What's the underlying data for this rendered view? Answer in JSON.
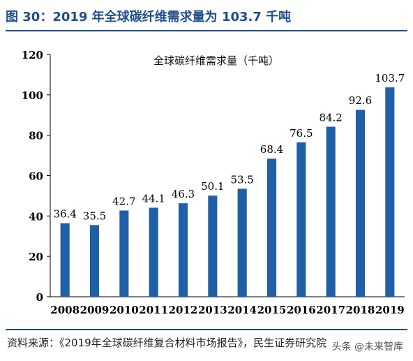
{
  "figure_title": "图 30：2019 年全球碳纤维需求量为 103.7 千吨",
  "source": "资料来源：《2019年全球碳纤维复合材料市场报告》，民生证券研究院",
  "watermark": "头条 @未来智库",
  "colors": {
    "bar": "#1f5fa8",
    "title": "#1f4e8c",
    "axis": "#000000"
  },
  "chart_data": {
    "type": "bar",
    "title": "全球碳纤维需求量（千吨）",
    "categories": [
      "2008",
      "2009",
      "2010",
      "2011",
      "2012",
      "2013",
      "2014",
      "2015",
      "2016",
      "2017",
      "2018",
      "2019"
    ],
    "values": [
      36.4,
      35.5,
      42.7,
      44.1,
      46.3,
      50.1,
      53.5,
      68.4,
      76.5,
      84.2,
      92.6,
      103.7
    ],
    "data_labels": [
      "36.4",
      "35.5",
      "42.7",
      "44.1",
      "46.3",
      "50.1",
      "53.5",
      "68.4",
      "76.5",
      "84.2",
      "92.6",
      "103.7"
    ],
    "yticks": [
      "0",
      "20",
      "40",
      "60",
      "80",
      "100",
      "120"
    ],
    "ylim": [
      0,
      120
    ],
    "xlabel": "",
    "ylabel": "",
    "grid": false,
    "legend": "none"
  }
}
